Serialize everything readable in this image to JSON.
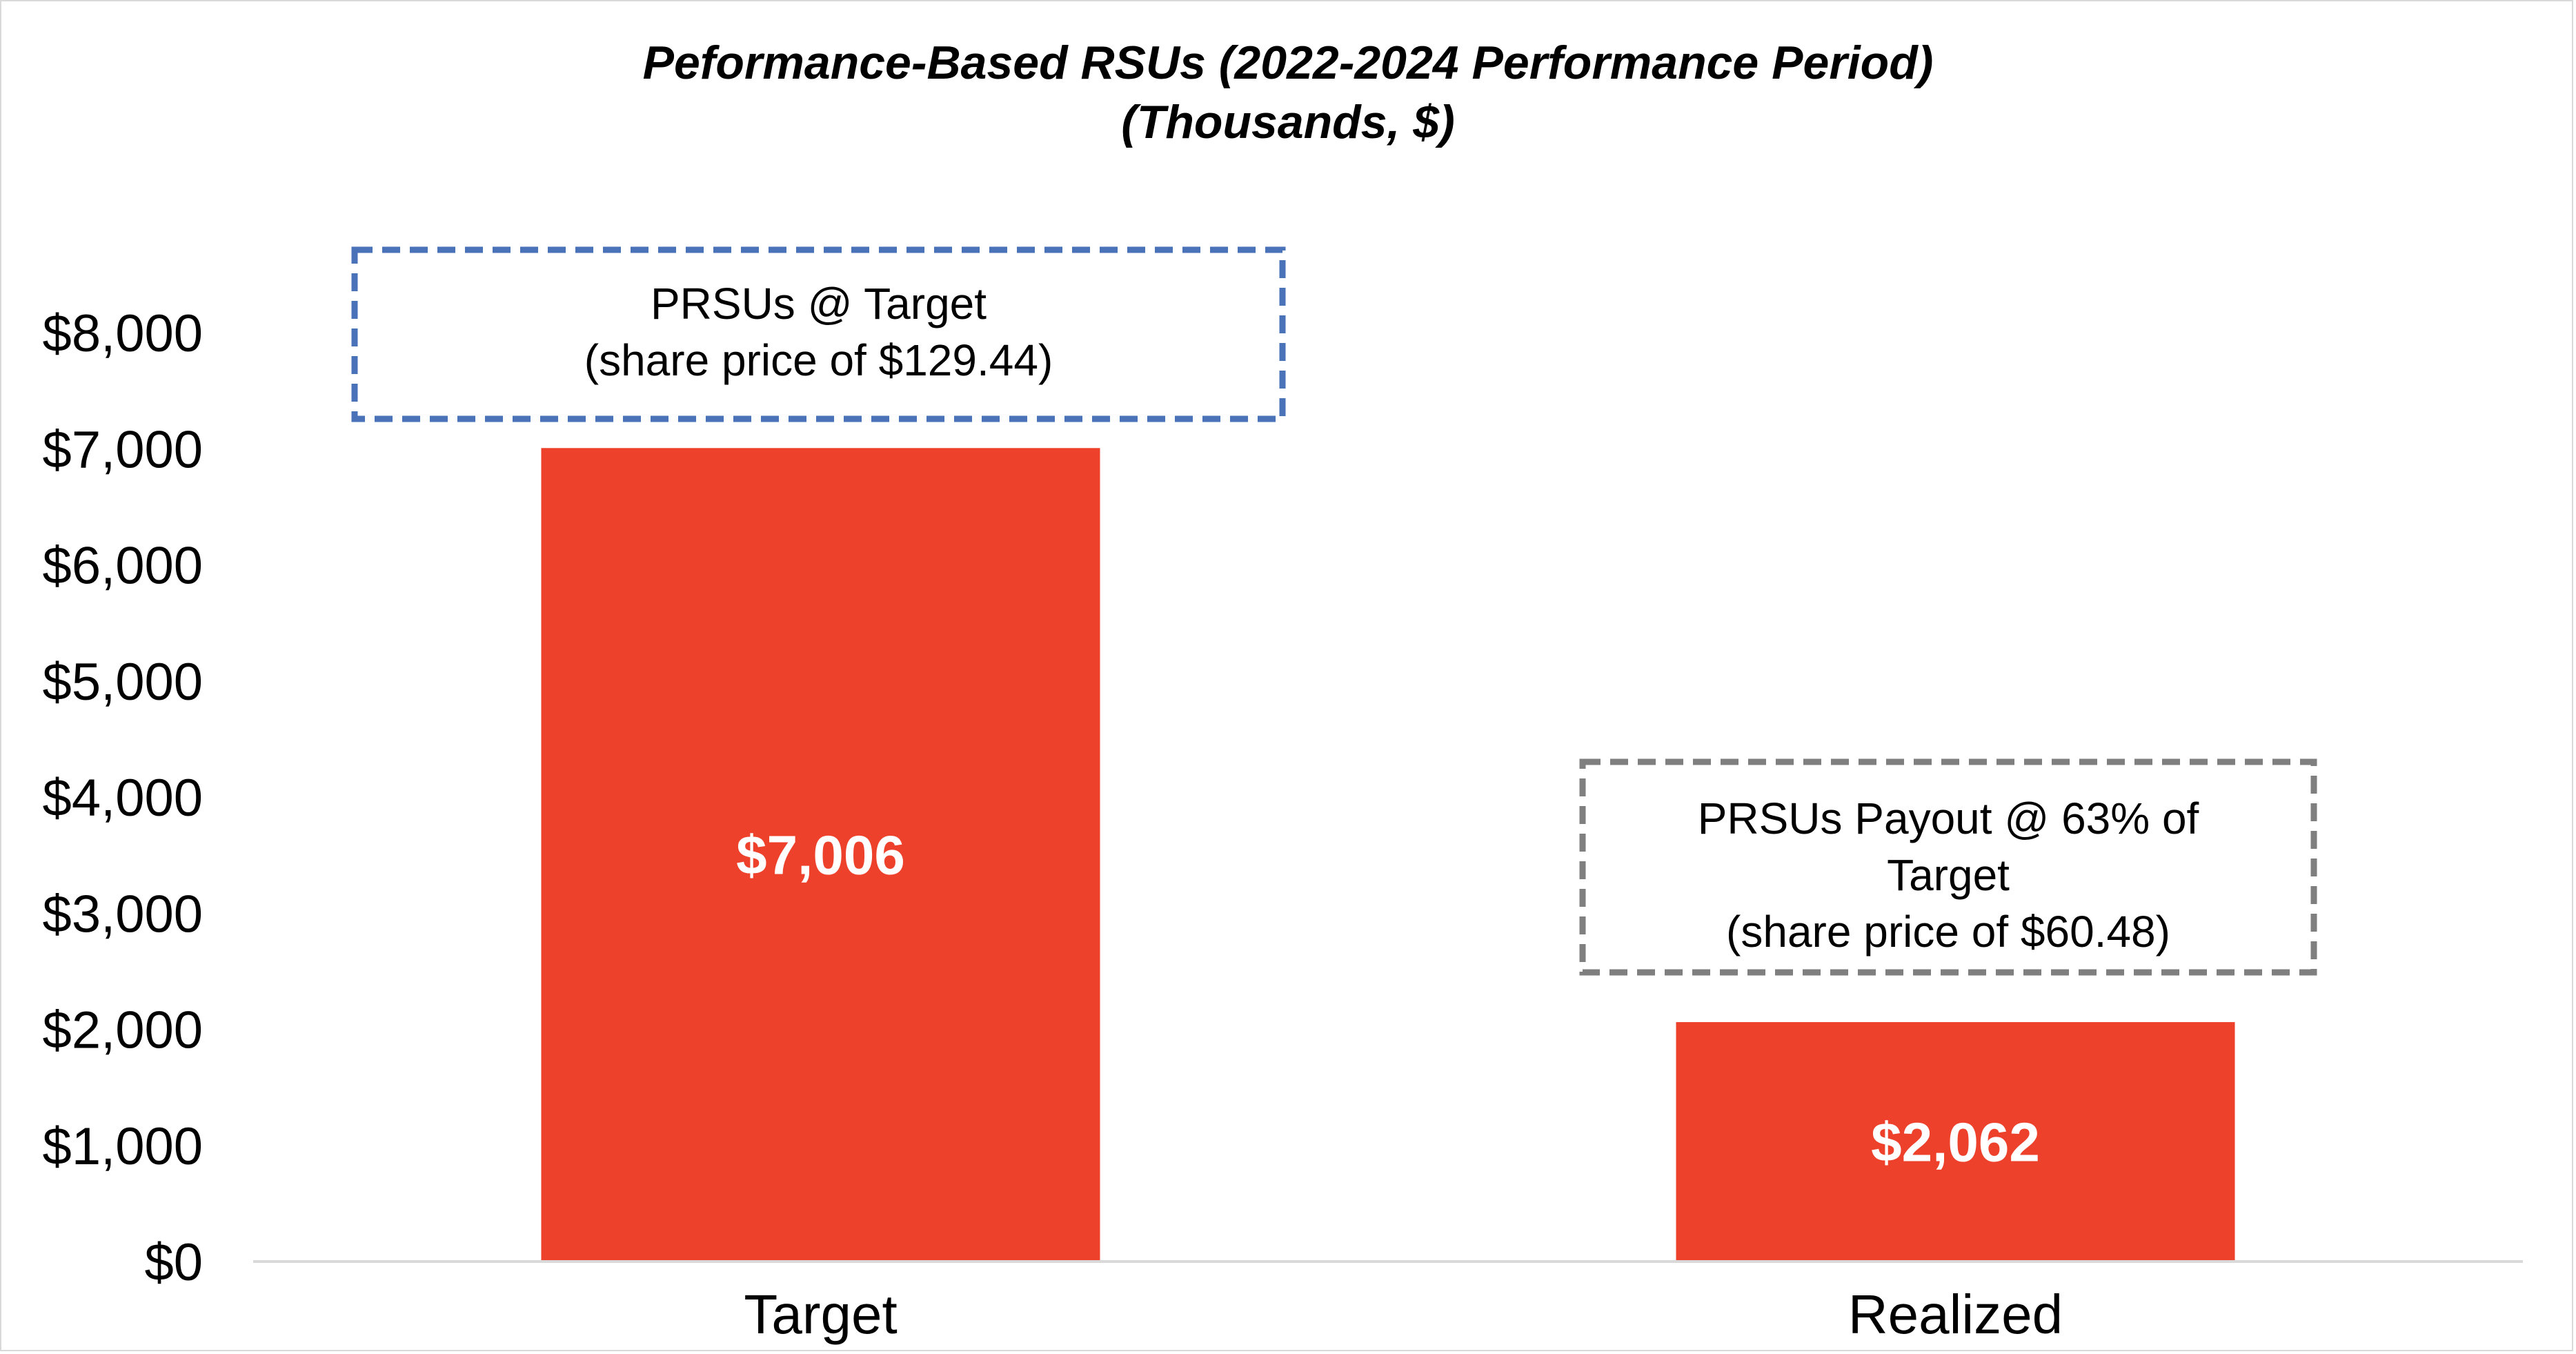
{
  "chart_data": {
    "type": "bar",
    "title": "Peformance-Based RSUs (2022-2024 Performance Period)",
    "subtitle": "(Thousands, $)",
    "categories": [
      "Target",
      "Realized"
    ],
    "values": [
      7006,
      2062
    ],
    "value_labels": [
      "$7,006",
      "$2,062"
    ],
    "ylim": [
      0,
      8000
    ],
    "yticks": [
      0,
      1000,
      2000,
      3000,
      4000,
      5000,
      6000,
      7000,
      8000
    ],
    "ytick_labels": [
      "$0",
      "$1,000",
      "$2,000",
      "$3,000",
      "$4,000",
      "$5,000",
      "$6,000",
      "$7,000",
      "$8,000"
    ],
    "xlabel": "",
    "ylabel": "",
    "grid": false,
    "bar_color": "#ee412b",
    "annotations": [
      {
        "target": "Target",
        "lines": [
          "PRSUs @ Target",
          "(share price of $129.44)"
        ],
        "border_color": "#4a72b8"
      },
      {
        "target": "Realized",
        "lines": [
          "PRSUs Payout @ 63% of",
          "Target",
          "(share price of $60.48)"
        ],
        "border_color": "#7f7f7f"
      }
    ]
  }
}
